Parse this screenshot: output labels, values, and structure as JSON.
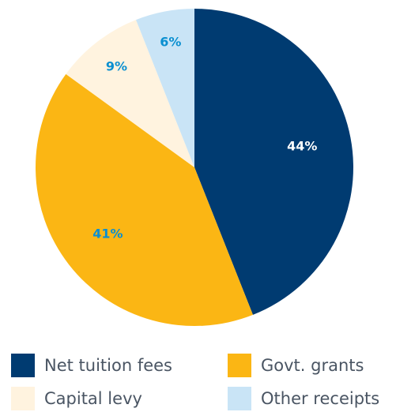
{
  "chart_data": {
    "type": "pie",
    "title": "",
    "series": [
      {
        "name": "Net tuition fees",
        "value": 44,
        "label": "44%",
        "color": "#003B71",
        "label_color": "#ffffff"
      },
      {
        "name": "Govt. grants",
        "value": 41,
        "label": "41%",
        "color": "#FBB614",
        "label_color": "#0A8FD0"
      },
      {
        "name": "Capital levy",
        "value": 9,
        "label": "9%",
        "color": "#FFF3DF",
        "label_color": "#0A8FD0"
      },
      {
        "name": "Other receipts",
        "value": 6,
        "label": "6%",
        "color": "#C9E4F6",
        "label_color": "#0A8FD0"
      }
    ],
    "start_angle_deg": 0,
    "direction": "clockwise",
    "legend_position": "bottom"
  },
  "legend": {
    "items": [
      {
        "label": "Net tuition fees",
        "color": "#003B71"
      },
      {
        "label": "Govt. grants",
        "color": "#FBB614"
      },
      {
        "label": "Capital levy",
        "color": "#FFF3DF"
      },
      {
        "label": "Other receipts",
        "color": "#C9E4F6"
      }
    ]
  }
}
